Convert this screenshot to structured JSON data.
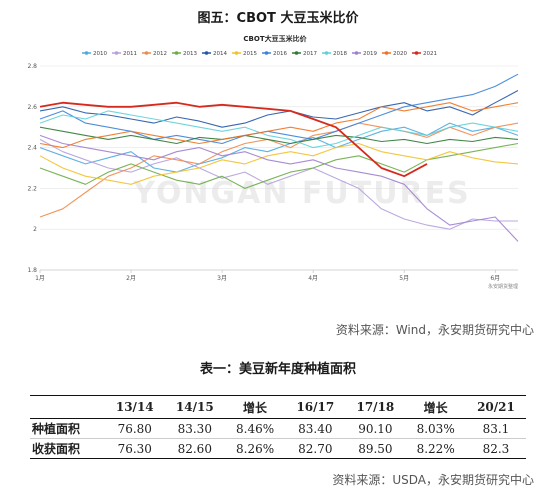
{
  "figure_title": "图五：CBOT 大豆玉米比价",
  "source_1": "资料来源：Wind，永安期货研究中心",
  "table_title": "表一：美豆新年度种植面积",
  "source_2": "资料来源：USDA，永安期货研究中心",
  "table": {
    "headers": [
      "",
      "13/14",
      "14/15",
      "增长",
      "16/17",
      "17/18",
      "增长",
      "20/21"
    ],
    "rows": [
      {
        "label": "种植面积",
        "cells": [
          "76.80",
          "83.30",
          "8.46%",
          "83.40",
          "90.10",
          "8.03%",
          "83.1"
        ]
      },
      {
        "label": "收获面积",
        "cells": [
          "76.30",
          "82.60",
          "8.26%",
          "82.70",
          "89.50",
          "8.22%",
          "82.3"
        ]
      }
    ]
  },
  "chart_data": {
    "type": "line",
    "title": "CBOT大豆玉米比价",
    "watermark": "YONGAN FUTURES",
    "source_note": "永安期货整理",
    "x_ticks": [
      "1月",
      "2月",
      "3月",
      "4月",
      "5月",
      "6月"
    ],
    "y_ticks": [
      "1.8",
      "2",
      "2.2",
      "2.4",
      "2.6",
      "2.8"
    ],
    "ylim": [
      1.8,
      2.8
    ],
    "x_range": [
      1,
      6.25
    ],
    "grid": true,
    "legend_position": "top",
    "x": [
      1.0,
      1.25,
      1.5,
      1.75,
      2.0,
      2.25,
      2.5,
      2.75,
      3.0,
      3.25,
      3.5,
      3.75,
      4.0,
      4.25,
      4.5,
      4.75,
      5.0,
      5.25,
      5.5,
      5.75,
      6.0,
      6.25
    ],
    "series": [
      {
        "name": "2010",
        "color": "#4fa8e0",
        "values": [
          2.4,
          2.36,
          2.32,
          2.35,
          2.38,
          2.3,
          2.28,
          2.32,
          2.35,
          2.4,
          2.38,
          2.42,
          2.45,
          2.4,
          2.44,
          2.48,
          2.5,
          2.46,
          2.52,
          2.48,
          2.5,
          2.46
        ]
      },
      {
        "name": "2011",
        "color": "#b5a0dd",
        "values": [
          2.44,
          2.38,
          2.34,
          2.3,
          2.28,
          2.32,
          2.35,
          2.3,
          2.25,
          2.28,
          2.22,
          2.26,
          2.3,
          2.25,
          2.2,
          2.1,
          2.05,
          2.02,
          2.0,
          2.05,
          2.04,
          2.04
        ]
      },
      {
        "name": "2012",
        "color": "#ee8a4b",
        "values": [
          2.06,
          2.1,
          2.18,
          2.26,
          2.3,
          2.36,
          2.34,
          2.32,
          2.38,
          2.42,
          2.44,
          2.4,
          2.46,
          2.48,
          2.52,
          2.5,
          2.48,
          2.45,
          2.5,
          2.46,
          2.5,
          2.52
        ]
      },
      {
        "name": "2013",
        "color": "#6aac46",
        "values": [
          2.3,
          2.26,
          2.22,
          2.28,
          2.32,
          2.28,
          2.24,
          2.22,
          2.26,
          2.2,
          2.24,
          2.28,
          2.3,
          2.34,
          2.36,
          2.32,
          2.28,
          2.34,
          2.36,
          2.38,
          2.4,
          2.42
        ]
      },
      {
        "name": "2014",
        "color": "#2456a6",
        "values": [
          2.58,
          2.6,
          2.57,
          2.56,
          2.54,
          2.52,
          2.55,
          2.53,
          2.5,
          2.52,
          2.56,
          2.58,
          2.55,
          2.54,
          2.57,
          2.6,
          2.62,
          2.58,
          2.6,
          2.56,
          2.62,
          2.68
        ]
      },
      {
        "name": "2015",
        "color": "#f2c12e",
        "values": [
          2.36,
          2.3,
          2.26,
          2.24,
          2.22,
          2.26,
          2.28,
          2.3,
          2.34,
          2.32,
          2.36,
          2.38,
          2.36,
          2.4,
          2.42,
          2.38,
          2.36,
          2.34,
          2.38,
          2.35,
          2.33,
          2.32
        ]
      },
      {
        "name": "2016",
        "color": "#3b82d9",
        "values": [
          2.54,
          2.58,
          2.52,
          2.5,
          2.48,
          2.44,
          2.46,
          2.44,
          2.42,
          2.46,
          2.48,
          2.46,
          2.44,
          2.48,
          2.52,
          2.56,
          2.6,
          2.62,
          2.64,
          2.66,
          2.7,
          2.76
        ]
      },
      {
        "name": "2017",
        "color": "#2f7a34",
        "values": [
          2.5,
          2.48,
          2.46,
          2.44,
          2.46,
          2.44,
          2.42,
          2.45,
          2.44,
          2.46,
          2.44,
          2.42,
          2.44,
          2.46,
          2.45,
          2.43,
          2.44,
          2.42,
          2.44,
          2.43,
          2.45,
          2.44
        ]
      },
      {
        "name": "2018",
        "color": "#5fd0d8",
        "values": [
          2.52,
          2.56,
          2.54,
          2.58,
          2.56,
          2.54,
          2.52,
          2.5,
          2.48,
          2.5,
          2.46,
          2.44,
          2.4,
          2.42,
          2.46,
          2.5,
          2.48,
          2.46,
          2.5,
          2.52,
          2.5,
          2.48
        ]
      },
      {
        "name": "2019",
        "color": "#9e7fcf",
        "values": [
          2.46,
          2.42,
          2.4,
          2.38,
          2.36,
          2.34,
          2.38,
          2.4,
          2.36,
          2.38,
          2.34,
          2.32,
          2.34,
          2.3,
          2.28,
          2.26,
          2.22,
          2.1,
          2.02,
          2.04,
          2.06,
          1.94
        ]
      },
      {
        "name": "2020",
        "color": "#f0731f",
        "values": [
          2.42,
          2.4,
          2.44,
          2.46,
          2.48,
          2.46,
          2.44,
          2.42,
          2.44,
          2.46,
          2.48,
          2.5,
          2.48,
          2.52,
          2.54,
          2.6,
          2.58,
          2.6,
          2.62,
          2.58,
          2.6,
          2.62
        ]
      },
      {
        "name": "2021",
        "color": "#d62a1e",
        "values": [
          2.6,
          2.62,
          2.61,
          2.6,
          2.6,
          2.61,
          2.62,
          2.6,
          2.61,
          2.6,
          2.59,
          2.58,
          2.54,
          2.5,
          2.4,
          2.3,
          2.26,
          2.32,
          null,
          null,
          null,
          null
        ]
      }
    ]
  }
}
